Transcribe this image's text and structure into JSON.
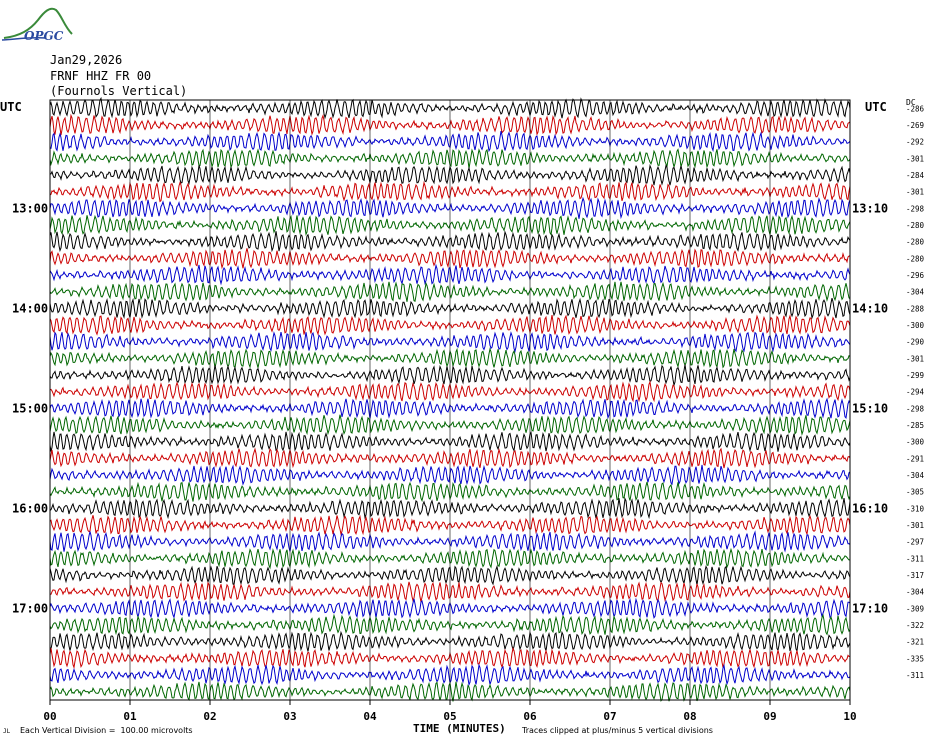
{
  "logo": {
    "text": "OPGC"
  },
  "header": {
    "date": "Jan29,2026",
    "station": "FRNF HHZ FR 00",
    "location": "(Fournols Vertical)"
  },
  "utc_label_left": "UTC",
  "utc_label_right": "UTC",
  "dc_label": "DC",
  "footer": {
    "division": "Each Vertical Division =  100.00 microvolts",
    "xlabel": "TIME (MINUTES)",
    "clip": "Traces clipped at plus/minus 5 vertical divisions",
    "mark": "JL"
  },
  "colors": {
    "trace_cycle": [
      "#000000",
      "#cc0000",
      "#0000cc",
      "#006600"
    ],
    "grid": "#000000"
  },
  "chart_data": {
    "type": "line",
    "title": "",
    "xlabel": "TIME (MINUTES)",
    "ylabel": "",
    "x_range": [
      0,
      10
    ],
    "x_ticks": [
      "00",
      "01",
      "02",
      "03",
      "04",
      "05",
      "06",
      "07",
      "08",
      "09",
      "10"
    ],
    "trace_count": 36,
    "minutes_per_trace": 10,
    "left_hour_labels": [
      {
        "trace": 6,
        "label": "13:00"
      },
      {
        "trace": 12,
        "label": "14:00"
      },
      {
        "trace": 18,
        "label": "15:00"
      },
      {
        "trace": 24,
        "label": "16:00"
      },
      {
        "trace": 30,
        "label": "17:00"
      }
    ],
    "right_hour_labels": [
      {
        "trace": 6,
        "label": "13:10"
      },
      {
        "trace": 12,
        "label": "14:10"
      },
      {
        "trace": 18,
        "label": "15:10"
      },
      {
        "trace": 24,
        "label": "16:10"
      },
      {
        "trace": 30,
        "label": "17:10"
      }
    ],
    "dc_offsets": [
      -286,
      -269,
      -292,
      -301,
      -284,
      -301,
      -298,
      -280,
      -280,
      -280,
      -296,
      -304,
      -288,
      -300,
      -290,
      -301,
      -299,
      -294,
      -298,
      -285,
      -300,
      -291,
      -304,
      -305,
      -310,
      -301,
      -297,
      -311,
      -317,
      -304,
      -309,
      -322,
      -321,
      -335,
      -311
    ],
    "grid": true
  }
}
